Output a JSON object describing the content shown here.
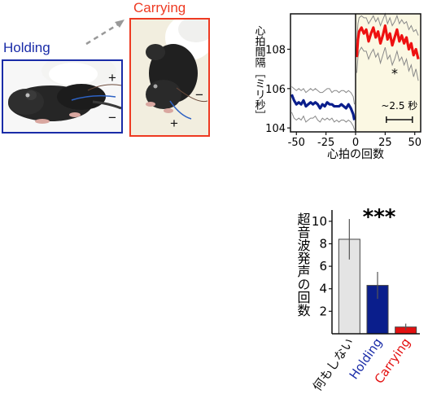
{
  "figure": {
    "photos": {
      "holding": {
        "label": "Holding",
        "color": "#1a2ca8",
        "signs": [
          "+",
          "−"
        ]
      },
      "carrying": {
        "label": "Carrying",
        "color": "#ee3a22",
        "signs": [
          "−",
          "+"
        ]
      }
    }
  },
  "chart_data": [
    {
      "type": "line",
      "xlabel": "心拍の回数",
      "ylabel": "心拍間隔［ミリ秒］",
      "xlim": [
        -55,
        55
      ],
      "ylim": [
        103.8,
        109.8
      ],
      "xticks": [
        -50,
        -25,
        0,
        25,
        50
      ],
      "yticks": [
        104,
        106,
        108
      ],
      "grid": false,
      "annotation_star": "*",
      "scale_bar_label": "~2.5 秒",
      "scale_bar_x": [
        26,
        48
      ],
      "event_x": 0,
      "colors": {
        "pre": "#0a1e8c",
        "post": "#ee1111",
        "shading": "#fbf8e3",
        "sem": "#888888"
      },
      "series": [
        {
          "x": [
            -54,
            -52,
            -50,
            -48,
            -46,
            -44,
            -42,
            -40,
            -38,
            -36,
            -34,
            -32,
            -30,
            -28,
            -26,
            -24,
            -22,
            -20,
            -18,
            -16,
            -14,
            -12,
            -10,
            -8,
            -6,
            -4,
            -2,
            -1
          ],
          "values": [
            105.7,
            105.4,
            105.2,
            105.3,
            105.2,
            105.4,
            105.1,
            105.2,
            105.3,
            105.2,
            105.3,
            105.2,
            105.0,
            105.2,
            105.1,
            105.3,
            105.2,
            105.2,
            105.1,
            105.1,
            105.1,
            105.2,
            105.1,
            105.0,
            105.2,
            105.0,
            104.7,
            104.4
          ],
          "upper": [
            106.1,
            106.0,
            105.9,
            106.0,
            105.9,
            106.0,
            105.8,
            105.9,
            106.0,
            105.9,
            106.0,
            105.9,
            105.8,
            105.8,
            105.9,
            106.0,
            106.0,
            105.8,
            105.9,
            105.9,
            105.8,
            105.9,
            105.9,
            105.8,
            105.9,
            105.8,
            105.6,
            105.2
          ],
          "lower": [
            104.8,
            104.5,
            104.4,
            104.5,
            104.4,
            104.6,
            104.3,
            104.4,
            104.5,
            104.5,
            104.6,
            104.4,
            104.3,
            104.5,
            104.4,
            104.5,
            104.4,
            104.5,
            104.3,
            104.4,
            104.3,
            104.4,
            104.4,
            104.3,
            104.4,
            104.3,
            104.1,
            103.9
          ]
        },
        {
          "x": [
            1,
            2,
            3,
            5,
            7,
            9,
            11,
            13,
            15,
            17,
            19,
            21,
            23,
            25,
            27,
            29,
            31,
            33,
            35,
            37,
            39,
            41,
            43,
            45,
            47,
            49,
            51,
            53
          ],
          "values": [
            107.6,
            108.5,
            108.9,
            109.1,
            108.8,
            109.0,
            108.4,
            108.8,
            109.1,
            108.6,
            108.9,
            108.3,
            108.7,
            109.2,
            108.5,
            108.8,
            108.2,
            108.6,
            109.0,
            108.4,
            108.7,
            108.3,
            108.6,
            108.0,
            108.3,
            107.7,
            108.0,
            107.5
          ],
          "upper": [
            108.4,
            109.3,
            109.6,
            109.7,
            109.6,
            109.6,
            109.3,
            109.5,
            109.7,
            109.4,
            109.6,
            109.2,
            109.5,
            109.8,
            109.3,
            109.6,
            109.2,
            109.4,
            109.7,
            109.3,
            109.5,
            109.3,
            109.4,
            109.0,
            109.2,
            108.9,
            109.0,
            108.7
          ],
          "lower": [
            106.8,
            107.6,
            107.9,
            108.1,
            107.9,
            107.9,
            107.5,
            107.8,
            108.0,
            107.6,
            107.8,
            107.3,
            107.7,
            108.1,
            107.5,
            107.7,
            107.2,
            107.5,
            107.9,
            107.4,
            107.6,
            107.2,
            107.5,
            106.9,
            107.2,
            106.6,
            107.0,
            106.4
          ]
        }
      ]
    },
    {
      "type": "bar",
      "ylabel": "超音波発声の回数",
      "categories": [
        "何もしない",
        "Holding",
        "Carrying"
      ],
      "values": [
        8.4,
        4.3,
        0.6
      ],
      "error": [
        1.8,
        1.2,
        0.3
      ],
      "ylim": [
        0,
        11
      ],
      "yticks": [
        2,
        4,
        6,
        8,
        10
      ],
      "significance": "***",
      "bar_colors": [
        "#e4e4e4",
        "#0a1e8c",
        "#e31010"
      ],
      "label_colors": [
        "#111111",
        "#1a2ca8",
        "#e31010"
      ]
    }
  ]
}
